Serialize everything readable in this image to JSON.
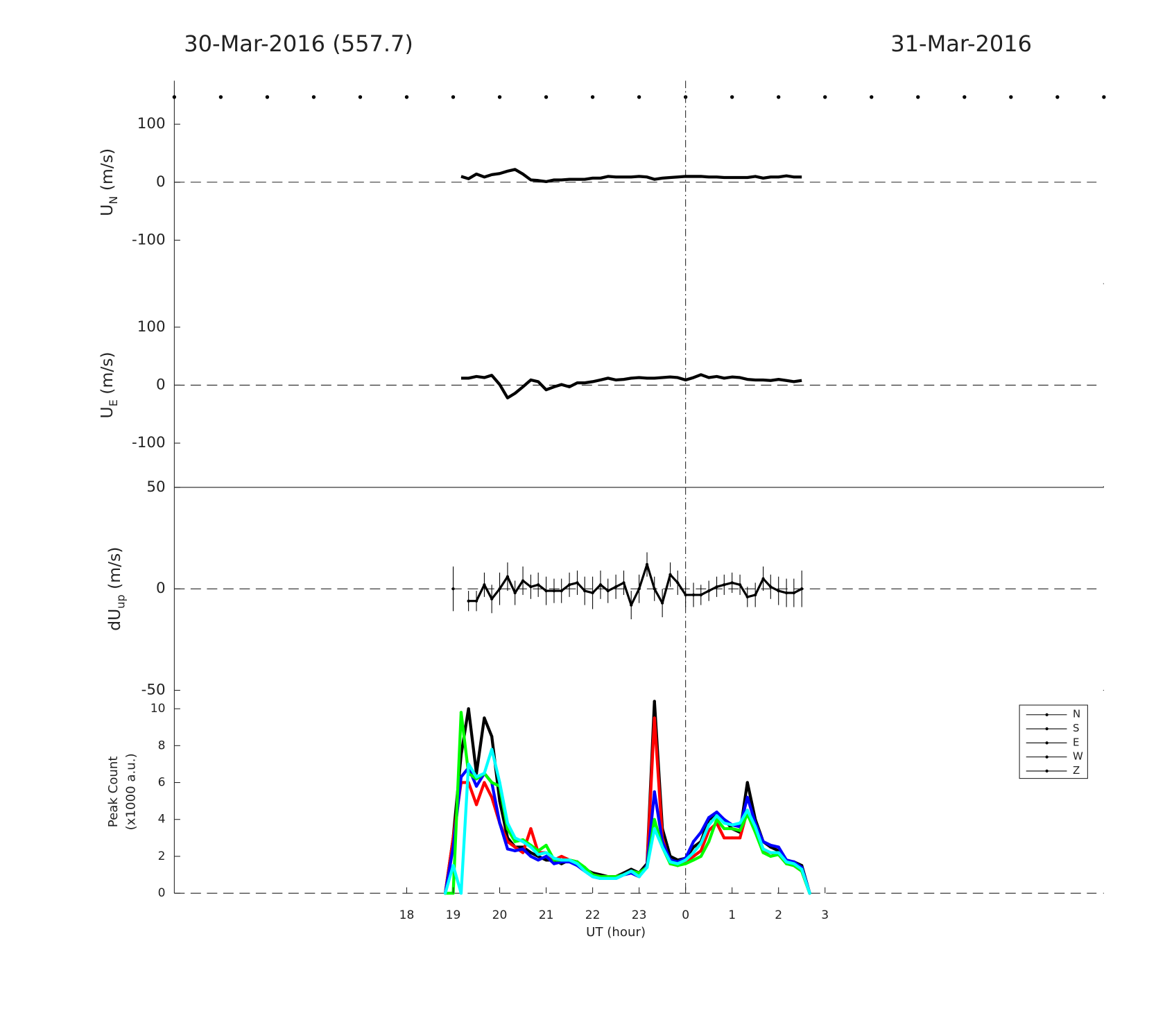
{
  "chart_data": [
    {
      "type": "line",
      "title": "30-Mar-2016 (557.7)",
      "title_right": "31-Mar-2016",
      "ylabel": [
        "U",
        "N",
        " (m/s)"
      ],
      "xlim": [
        -11,
        9
      ],
      "ylim": [
        -175,
        175
      ],
      "yticks": [
        -100,
        0,
        100
      ],
      "vline": 0,
      "zero_line": true,
      "color": "#000000",
      "x": [
        -4.83,
        -4.67,
        -4.5,
        -4.33,
        -4.17,
        -4,
        -3.83,
        -3.67,
        -3.5,
        -3.33,
        -3.17,
        -3,
        -2.83,
        -2.67,
        -2.5,
        -2.33,
        -2.17,
        -2,
        -1.83,
        -1.67,
        -1.5,
        -1.33,
        -1.17,
        -1,
        -0.83,
        -0.67,
        -0.5,
        -0.33,
        -0.17,
        0,
        0.17,
        0.33,
        0.5,
        0.67,
        0.83,
        1,
        1.17,
        1.33,
        1.5,
        1.67,
        1.83,
        2,
        2.17,
        2.33,
        2.5
      ],
      "values": [
        10,
        6,
        14,
        9,
        13,
        15,
        19,
        22,
        14,
        4,
        3,
        1,
        4,
        4,
        5,
        5,
        5,
        7,
        7,
        10,
        9,
        9,
        9,
        10,
        9,
        5,
        7,
        8,
        9,
        10,
        10,
        10,
        9,
        9,
        8,
        8,
        8,
        8,
        10,
        7,
        9,
        9,
        11,
        9,
        9
      ]
    },
    {
      "type": "line",
      "ylabel": [
        "U",
        "E",
        " (m/s)"
      ],
      "xlim": [
        -11,
        9
      ],
      "ylim": [
        -175,
        175
      ],
      "yticks": [
        -100,
        0,
        100
      ],
      "vline": 0,
      "zero_line": true,
      "color": "#000000",
      "x": [
        -4.83,
        -4.67,
        -4.5,
        -4.33,
        -4.17,
        -4,
        -3.83,
        -3.67,
        -3.5,
        -3.33,
        -3.17,
        -3,
        -2.83,
        -2.67,
        -2.5,
        -2.33,
        -2.17,
        -2,
        -1.83,
        -1.67,
        -1.5,
        -1.33,
        -1.17,
        -1,
        -0.83,
        -0.67,
        -0.5,
        -0.33,
        -0.17,
        0,
        0.17,
        0.33,
        0.5,
        0.67,
        0.83,
        1,
        1.17,
        1.33,
        1.5,
        1.67,
        1.83,
        2,
        2.17,
        2.33,
        2.5
      ],
      "values": [
        12,
        12,
        15,
        13,
        17,
        1,
        -22,
        -14,
        -3,
        9,
        6,
        -8,
        -3,
        1,
        -3,
        4,
        4,
        6,
        9,
        12,
        9,
        10,
        12,
        13,
        12,
        12,
        13,
        14,
        13,
        9,
        13,
        18,
        13,
        15,
        12,
        14,
        13,
        10,
        9,
        9,
        8,
        10,
        8,
        6,
        8
      ]
    },
    {
      "type": "errorline",
      "ylabel": [
        "dU",
        "up",
        " (m/s)"
      ],
      "xlim": [
        -11,
        9
      ],
      "ylim": [
        -50,
        50
      ],
      "yticks": [
        -50,
        0,
        50
      ],
      "vline": 0,
      "zero_line": true,
      "color": "#000000",
      "x": [
        -5,
        -4.83,
        -4.67,
        -4.5,
        -4.33,
        -4.17,
        -4,
        -3.83,
        -3.67,
        -3.5,
        -3.33,
        -3.17,
        -3,
        -2.83,
        -2.67,
        -2.5,
        -2.33,
        -2.17,
        -2,
        -1.83,
        -1.67,
        -1.5,
        -1.33,
        -1.17,
        -1,
        -0.83,
        -0.67,
        -0.5,
        -0.33,
        -0.17,
        0,
        0.17,
        0.33,
        0.5,
        0.67,
        0.83,
        1,
        1.17,
        1.33,
        1.5,
        1.67,
        1.83,
        2,
        2.17,
        2.33,
        2.5
      ],
      "values": [
        0,
        null,
        -6,
        -6,
        2,
        -5,
        0,
        6,
        -2,
        4,
        1,
        2,
        -1,
        -1,
        -1,
        2,
        3,
        -1,
        -2,
        2,
        -1,
        1,
        3,
        -8,
        0,
        12,
        0,
        -7,
        7,
        3,
        -3,
        -3,
        -3,
        -1,
        1,
        2,
        3,
        2,
        -4,
        -3,
        5,
        1,
        -1,
        -2,
        -2,
        0
      ],
      "errors": [
        11,
        null,
        5,
        5,
        6,
        7,
        8,
        7,
        6,
        7,
        6,
        6,
        7,
        6,
        6,
        6,
        6,
        7,
        8,
        7,
        6,
        6,
        6,
        7,
        7,
        6,
        6,
        7,
        6,
        6,
        6,
        6,
        5,
        5,
        5,
        5,
        5,
        5,
        5,
        6,
        6,
        6,
        7,
        7,
        7,
        9
      ]
    },
    {
      "type": "multiline",
      "ylabel": [
        "Peak Count",
        "(x1000 a.u.)"
      ],
      "xlabel": "UT (hour)",
      "xlim": [
        -11,
        9
      ],
      "ylim": [
        0,
        11
      ],
      "yticks": [
        0,
        2,
        4,
        6,
        8,
        10
      ],
      "vline": 0,
      "zero_line": true,
      "legend": "right",
      "xticks": [
        {
          "value": -6,
          "label": "18"
        },
        {
          "value": -5,
          "label": "19"
        },
        {
          "value": -4,
          "label": "20"
        },
        {
          "value": -3,
          "label": "21"
        },
        {
          "value": -2,
          "label": "22"
        },
        {
          "value": -1,
          "label": "23"
        },
        0,
        1,
        2,
        3
      ],
      "x": [
        -5.17,
        -5,
        -4.83,
        -4.67,
        -4.5,
        -4.33,
        -4.17,
        -4,
        -3.83,
        -3.67,
        -3.5,
        -3.33,
        -3.17,
        -3,
        -2.83,
        -2.67,
        -2.5,
        -2.33,
        -2.17,
        -2,
        -1.83,
        -1.67,
        -1.5,
        -1.33,
        -1.17,
        -1,
        -0.83,
        -0.67,
        -0.5,
        -0.33,
        -0.17,
        0,
        0.17,
        0.33,
        0.5,
        0.67,
        0.83,
        1,
        1.17,
        1.33,
        1.5,
        1.67,
        1.83,
        2,
        2.17,
        2.33,
        2.5,
        2.67
      ],
      "series": [
        {
          "name": "N",
          "color": "#000000",
          "values": [
            0,
            3,
            7.5,
            10,
            6.5,
            9.5,
            8.5,
            5,
            3,
            2.5,
            2.5,
            2.2,
            2,
            1.8,
            1.8,
            1.6,
            1.8,
            1.7,
            1.3,
            1.1,
            1,
            0.9,
            0.9,
            1.1,
            1.3,
            1.1,
            1.6,
            10.4,
            3.5,
            2,
            1.8,
            1.9,
            2.5,
            2.8,
            4,
            4.2,
            4,
            3.5,
            3.3,
            6,
            4,
            2.8,
            2.5,
            2.3,
            1.8,
            1.7,
            1.5,
            0
          ]
        },
        {
          "name": "S",
          "color": "#ff0000",
          "values": [
            0,
            3,
            6,
            6,
            4.8,
            6,
            5.2,
            3.8,
            2.8,
            2.5,
            2.2,
            3.5,
            2.2,
            2.2,
            1.8,
            2,
            1.8,
            1.6,
            1.3,
            1,
            0.9,
            0.9,
            0.9,
            1,
            1.1,
            0.9,
            1.5,
            9.5,
            3,
            1.6,
            1.5,
            1.7,
            2,
            2.3,
            3.4,
            3.8,
            3,
            3,
            3,
            4.5,
            3.5,
            2.3,
            2.2,
            2.1,
            1.6,
            1.5,
            1.2,
            0
          ]
        },
        {
          "name": "E",
          "color": "#0000ff",
          "values": [
            0,
            2.5,
            6.3,
            6.8,
            5.8,
            6.5,
            6,
            3.8,
            2.4,
            2.3,
            2.4,
            2,
            1.8,
            2,
            1.6,
            1.7,
            1.7,
            1.5,
            1.2,
            0.9,
            0.8,
            0.8,
            0.8,
            1,
            1.1,
            0.9,
            1.5,
            5.5,
            2.8,
            1.8,
            1.7,
            1.9,
            2.8,
            3.3,
            4.1,
            4.4,
            4,
            3.7,
            3.6,
            5.2,
            3.8,
            2.8,
            2.6,
            2.5,
            1.8,
            1.7,
            1.4,
            0
          ]
        },
        {
          "name": "W",
          "color": "#00ff00",
          "values": [
            0,
            0,
            9.8,
            6.5,
            6.2,
            6.5,
            6,
            5.8,
            3.5,
            2.8,
            2.9,
            2.6,
            2.3,
            2.6,
            1.8,
            1.8,
            1.8,
            1.7,
            1.4,
            1,
            0.9,
            0.9,
            0.9,
            1,
            1.2,
            1.1,
            1.4,
            4,
            2.5,
            1.6,
            1.5,
            1.6,
            1.8,
            2,
            2.8,
            4,
            3.5,
            3.5,
            3.4,
            4.3,
            3.3,
            2.2,
            2,
            2.1,
            1.6,
            1.5,
            1.2,
            0
          ]
        },
        {
          "name": "Z",
          "color": "#00ffff",
          "values": [
            0,
            1.5,
            0,
            7,
            6.3,
            6.5,
            7.8,
            6,
            3.8,
            3,
            2.8,
            2.5,
            2.1,
            2.2,
            1.9,
            1.8,
            1.8,
            1.6,
            1.2,
            0.9,
            0.8,
            0.8,
            0.8,
            1,
            1.2,
            0.9,
            1.4,
            3.5,
            2.5,
            1.7,
            1.6,
            1.8,
            2.2,
            2.7,
            3.7,
            4.2,
            3.8,
            3.7,
            3.8,
            4.5,
            3.6,
            2.4,
            2.2,
            2.2,
            1.7,
            1.6,
            1.3,
            0
          ]
        }
      ]
    }
  ]
}
